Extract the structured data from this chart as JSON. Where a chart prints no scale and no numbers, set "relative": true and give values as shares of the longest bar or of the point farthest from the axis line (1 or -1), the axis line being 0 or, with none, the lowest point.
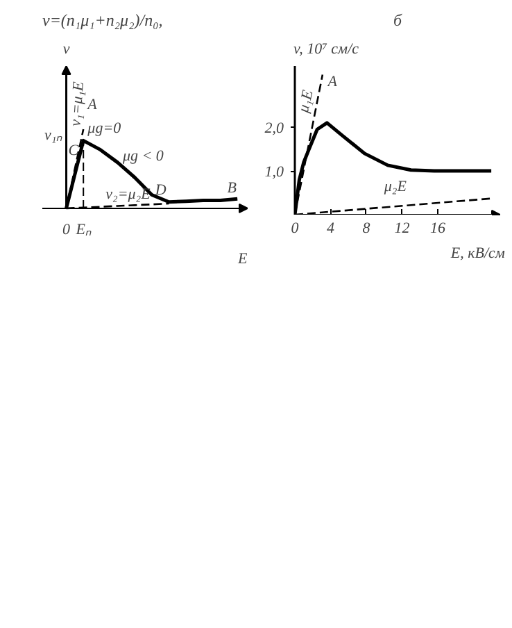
{
  "chart_data": [
    {
      "type": "line",
      "title": "v=(n₁μ₁+n₂μ₂)/n₀,",
      "xlabel": "E",
      "ylabel": "v",
      "relative": true,
      "categories": [
        "0",
        "Eₙ",
        null,
        null,
        null,
        null,
        null,
        null,
        null,
        null,
        null
      ],
      "series": [
        {
          "color": "#000000",
          "line_style": "solid",
          "values": [
            0,
            0.857,
            0.74,
            0.58,
            0.39,
            0.17,
            0.08,
            0.09,
            0.1,
            0.1,
            0.12
          ]
        },
        {
          "name": "v₁=μ₁E",
          "color": "#000000",
          "line_style": "dashed",
          "values": [
            0,
            1,
            null,
            null,
            null,
            null,
            null,
            null,
            null,
            null,
            null
          ]
        },
        {
          "name": "v₂=μ₂E",
          "color": "#000000",
          "line_style": "dashed",
          "values": [
            0,
            0.01,
            0.02,
            0.03,
            0.04,
            0.05,
            0.06,
            null,
            null,
            null,
            null
          ]
        }
      ],
      "ref_lines": [
        {
          "axis": "x",
          "value": "Eₙ",
          "line_style": "dashed"
        }
      ],
      "annotations": [
        "A",
        "C",
        "μg=0",
        "μg < 0",
        "D",
        "B",
        "v₁ₙ"
      ],
      "grid": false
    },
    {
      "type": "line",
      "title": "б",
      "xlabel": "E, кВ/см",
      "ylabel": "v, 10⁷ см/с",
      "xlim": [
        0,
        23
      ],
      "ylim": [
        0,
        3.4
      ],
      "xticks": [
        0,
        4,
        8,
        12,
        16
      ],
      "yticks": [
        {
          "value": 1,
          "label": "1,0"
        },
        {
          "value": 2,
          "label": "2,0"
        }
      ],
      "series": [
        {
          "color": "#000000",
          "line_style": "solid",
          "x": [
            0,
            0.5,
            1.0,
            1.55,
            2.5,
            3.6,
            5.2,
            7.8,
            10.4,
            13,
            15.6,
            22
          ],
          "values": [
            0,
            0.8,
            1.2,
            1.48,
            1.95,
            2.1,
            1.83,
            1.4,
            1.13,
            1.02,
            1.0,
            1.0
          ]
        },
        {
          "name": "μ₁E",
          "color": "#000000",
          "line_style": "dashed",
          "x": [
            0,
            3.1
          ],
          "values": [
            0,
            3.2
          ]
        },
        {
          "name": "μ₂E",
          "color": "#000000",
          "line_style": "dashed",
          "x": [
            0,
            22
          ],
          "values": [
            0,
            0.37
          ]
        }
      ],
      "annotations": [
        "A"
      ],
      "grid": false
    }
  ]
}
